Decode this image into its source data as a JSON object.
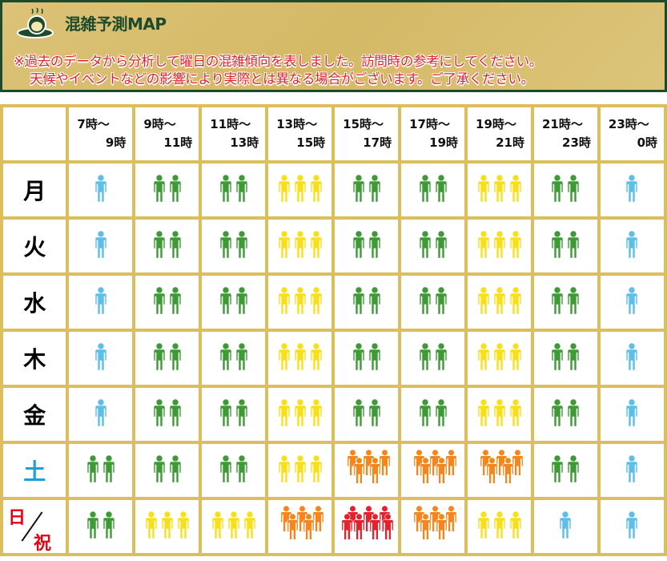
{
  "header": {
    "title": "混雑予測MAP",
    "note_line1": "※過去のデータから分析して曜日の混雑傾向を表しました。訪問時の参考にしてください。",
    "note_line2": "天候やイベントなどの影響により実際とは異なる場合がございます。ご了承ください。"
  },
  "columns": [
    [
      "7時～",
      "9時"
    ],
    [
      "9時～",
      "11時"
    ],
    [
      "11時～",
      "13時"
    ],
    [
      "13時～",
      "15時"
    ],
    [
      "15時～",
      "17時"
    ],
    [
      "17時～",
      "19時"
    ],
    [
      "19時～",
      "21時"
    ],
    [
      "21時～",
      "23時"
    ],
    [
      "23時～",
      "0時"
    ]
  ],
  "colors": {
    "1": "#5bbfe8",
    "2": "#3d9a35",
    "3": "#f7e01a",
    "4": "#f7851c",
    "5": "#e8202a"
  },
  "rows": [
    {
      "day": "月",
      "levels": [
        1,
        2,
        2,
        3,
        2,
        2,
        3,
        2,
        1
      ]
    },
    {
      "day": "火",
      "levels": [
        1,
        2,
        2,
        3,
        2,
        2,
        3,
        2,
        1
      ]
    },
    {
      "day": "水",
      "levels": [
        1,
        2,
        2,
        3,
        2,
        2,
        3,
        2,
        1
      ]
    },
    {
      "day": "木",
      "levels": [
        1,
        2,
        2,
        3,
        2,
        2,
        3,
        2,
        1
      ]
    },
    {
      "day": "金",
      "levels": [
        1,
        2,
        2,
        3,
        2,
        2,
        3,
        2,
        1
      ]
    },
    {
      "day": "土",
      "levels": [
        2,
        2,
        2,
        3,
        4,
        4,
        4,
        2,
        1
      ]
    },
    {
      "day": "日",
      "day2": "祝",
      "levels": [
        2,
        3,
        3,
        4,
        5,
        4,
        3,
        1,
        1
      ]
    }
  ]
}
